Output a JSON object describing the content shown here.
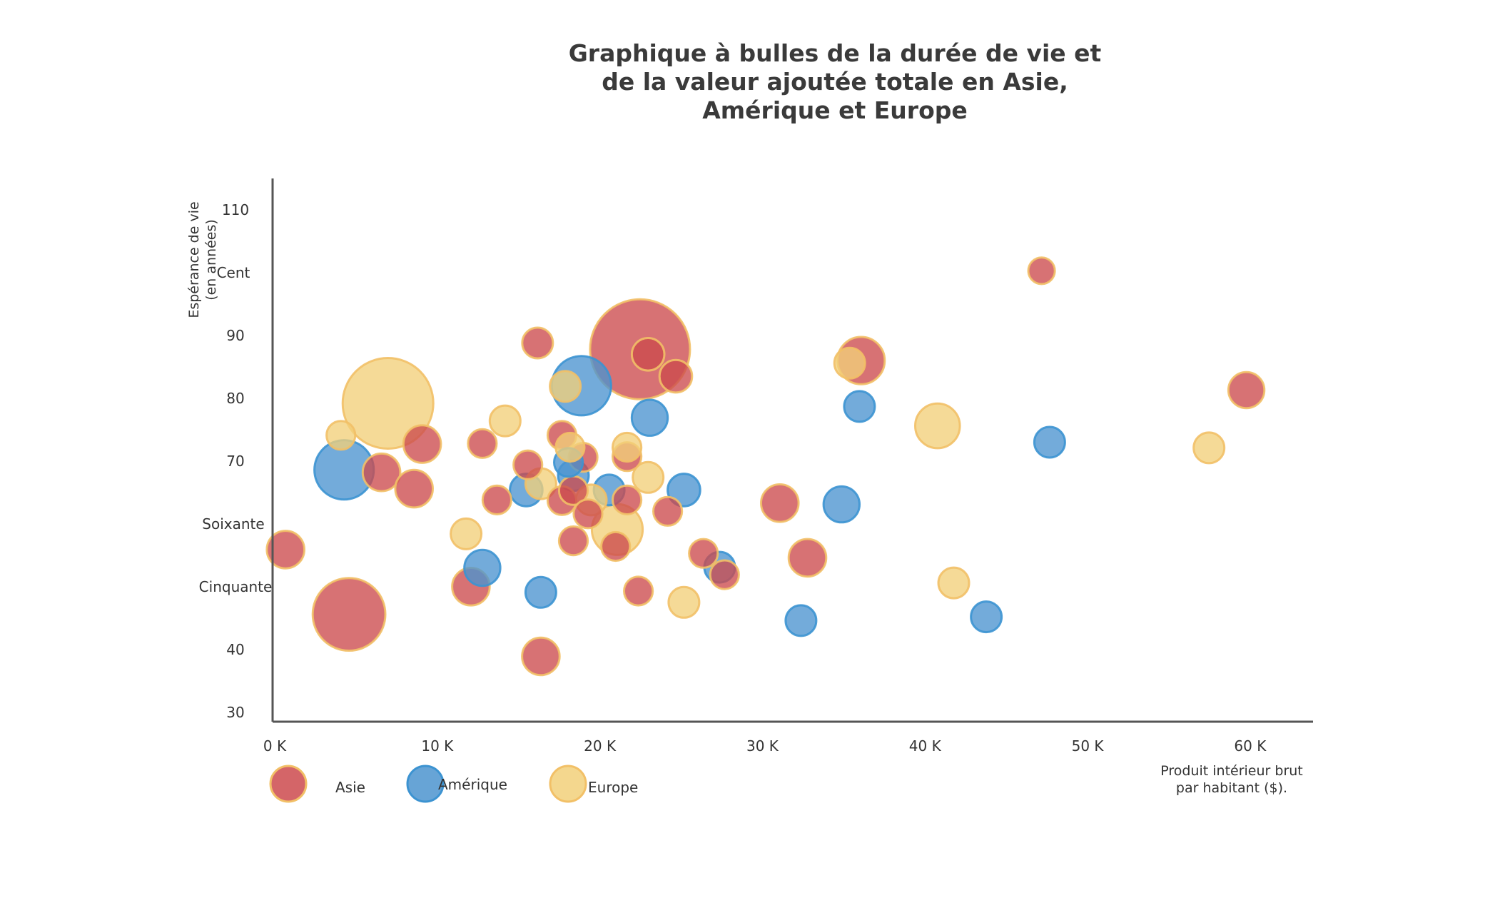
{
  "chart_data": {
    "type": "scatter",
    "subtype": "bubble",
    "title_lines": [
      "Graphique à bulles de la durée de vie et",
      "de la valeur ajoutée totale en Asie,",
      "Amérique et Europe"
    ],
    "xlabel_lines": [
      "Produit intérieur brut",
      "par habitant ($)."
    ],
    "ylabel_lines": [
      "Espérance de vie",
      "(en années)"
    ],
    "xlim": [
      0,
      64000
    ],
    "ylim": [
      28.5,
      115
    ],
    "x_ticks": [
      {
        "value": 0,
        "label": "0 K"
      },
      {
        "value": 10000,
        "label": "10 K"
      },
      {
        "value": 20000,
        "label": "20 K"
      },
      {
        "value": 30000,
        "label": "30 K"
      },
      {
        "value": 40000,
        "label": "40 K"
      },
      {
        "value": 50000,
        "label": "50 K"
      },
      {
        "value": 60000,
        "label": "60 K"
      }
    ],
    "y_ticks": [
      {
        "value": 30,
        "label": "30"
      },
      {
        "value": 40,
        "label": "40"
      },
      {
        "value": 50,
        "label": "Cinquante"
      },
      {
        "value": 60,
        "label": "Soixante"
      },
      {
        "value": 70,
        "label": "70"
      },
      {
        "value": 80,
        "label": "80"
      },
      {
        "value": 90,
        "label": "90"
      },
      {
        "value": 100,
        "label": "Cent"
      },
      {
        "value": 110,
        "label": "110"
      }
    ],
    "grid": false,
    "legend_position": "bottom-left",
    "series": [
      {
        "name": "Asie",
        "fill": "#cc4a4d",
        "stroke": "#f2c067",
        "points": [
          {
            "x": 800,
            "y": 55.9,
            "size": 1.2
          },
          {
            "x": 4700,
            "y": 45.6,
            "size": 4.5
          },
          {
            "x": 6700,
            "y": 68.2,
            "size": 1.2
          },
          {
            "x": 8700,
            "y": 65.6,
            "size": 1.2
          },
          {
            "x": 9200,
            "y": 72.7,
            "size": 1.2
          },
          {
            "x": 12200,
            "y": 50.0,
            "size": 1.2
          },
          {
            "x": 12900,
            "y": 72.8,
            "size": 0.7
          },
          {
            "x": 13800,
            "y": 63.8,
            "size": 0.7
          },
          {
            "x": 15700,
            "y": 69.4,
            "size": 0.7
          },
          {
            "x": 16300,
            "y": 88.8,
            "size": 0.8
          },
          {
            "x": 16500,
            "y": 38.9,
            "size": 1.2
          },
          {
            "x": 17800,
            "y": 74.1,
            "size": 0.7
          },
          {
            "x": 17800,
            "y": 63.7,
            "size": 0.7
          },
          {
            "x": 18500,
            "y": 65.3,
            "size": 0.7
          },
          {
            "x": 18500,
            "y": 57.3,
            "size": 0.7
          },
          {
            "x": 19100,
            "y": 70.6,
            "size": 0.7
          },
          {
            "x": 19400,
            "y": 61.6,
            "size": 0.7
          },
          {
            "x": 21100,
            "y": 56.4,
            "size": 0.7
          },
          {
            "x": 21800,
            "y": 70.7,
            "size": 0.7
          },
          {
            "x": 21800,
            "y": 63.8,
            "size": 0.7
          },
          {
            "x": 22500,
            "y": 49.3,
            "size": 0.7
          },
          {
            "x": 22600,
            "y": 87.8,
            "size": 8.5
          },
          {
            "x": 23100,
            "y": 87.0,
            "size": 0.9
          },
          {
            "x": 24300,
            "y": 62.0,
            "size": 0.7
          },
          {
            "x": 24800,
            "y": 83.5,
            "size": 0.9
          },
          {
            "x": 26500,
            "y": 55.3,
            "size": 0.7
          },
          {
            "x": 27800,
            "y": 51.9,
            "size": 0.7
          },
          {
            "x": 31200,
            "y": 63.3,
            "size": 1.2
          },
          {
            "x": 32900,
            "y": 54.6,
            "size": 1.2
          },
          {
            "x": 36200,
            "y": 86.0,
            "size": 1.9
          },
          {
            "x": 47300,
            "y": 100.3,
            "size": 0.6
          },
          {
            "x": 59900,
            "y": 81.3,
            "size": 1.1
          }
        ]
      },
      {
        "name": "Amérique",
        "fill": "#4c94cf",
        "stroke": "#3c93d1",
        "points": [
          {
            "x": 4400,
            "y": 68.6,
            "size": 3.0
          },
          {
            "x": 12900,
            "y": 53.0,
            "size": 1.1
          },
          {
            "x": 15600,
            "y": 65.4,
            "size": 0.9
          },
          {
            "x": 16500,
            "y": 49.1,
            "size": 0.8
          },
          {
            "x": 18200,
            "y": 69.8,
            "size": 0.7
          },
          {
            "x": 18500,
            "y": 67.7,
            "size": 0.8
          },
          {
            "x": 19000,
            "y": 82.0,
            "size": 3.0
          },
          {
            "x": 20700,
            "y": 65.4,
            "size": 0.8
          },
          {
            "x": 23200,
            "y": 76.9,
            "size": 1.1
          },
          {
            "x": 25300,
            "y": 65.4,
            "size": 0.9
          },
          {
            "x": 27500,
            "y": 53.1,
            "size": 0.8
          },
          {
            "x": 32500,
            "y": 44.6,
            "size": 0.8
          },
          {
            "x": 35000,
            "y": 63.1,
            "size": 1.1
          },
          {
            "x": 36100,
            "y": 78.7,
            "size": 0.8
          },
          {
            "x": 43900,
            "y": 45.2,
            "size": 0.8
          },
          {
            "x": 47800,
            "y": 73.0,
            "size": 0.8
          }
        ]
      },
      {
        "name": "Europe",
        "fill": "#f2d07a",
        "stroke": "#f2c067",
        "points": [
          {
            "x": 4200,
            "y": 74.1,
            "size": 0.7
          },
          {
            "x": 7100,
            "y": 79.2,
            "size": 7.0
          },
          {
            "x": 11900,
            "y": 58.4,
            "size": 0.8
          },
          {
            "x": 14300,
            "y": 76.4,
            "size": 0.8
          },
          {
            "x": 16500,
            "y": 66.4,
            "size": 0.8
          },
          {
            "x": 18000,
            "y": 81.9,
            "size": 0.8
          },
          {
            "x": 18300,
            "y": 72.2,
            "size": 0.7
          },
          {
            "x": 19600,
            "y": 63.8,
            "size": 0.8
          },
          {
            "x": 21200,
            "y": 59.1,
            "size": 2.2
          },
          {
            "x": 21800,
            "y": 72.2,
            "size": 0.7
          },
          {
            "x": 23100,
            "y": 67.4,
            "size": 0.8
          },
          {
            "x": 25300,
            "y": 47.5,
            "size": 0.8
          },
          {
            "x": 35500,
            "y": 85.6,
            "size": 0.8
          },
          {
            "x": 40900,
            "y": 75.6,
            "size": 1.7
          },
          {
            "x": 41900,
            "y": 50.6,
            "size": 0.8
          },
          {
            "x": 57600,
            "y": 72.1,
            "size": 0.8
          }
        ]
      }
    ]
  }
}
